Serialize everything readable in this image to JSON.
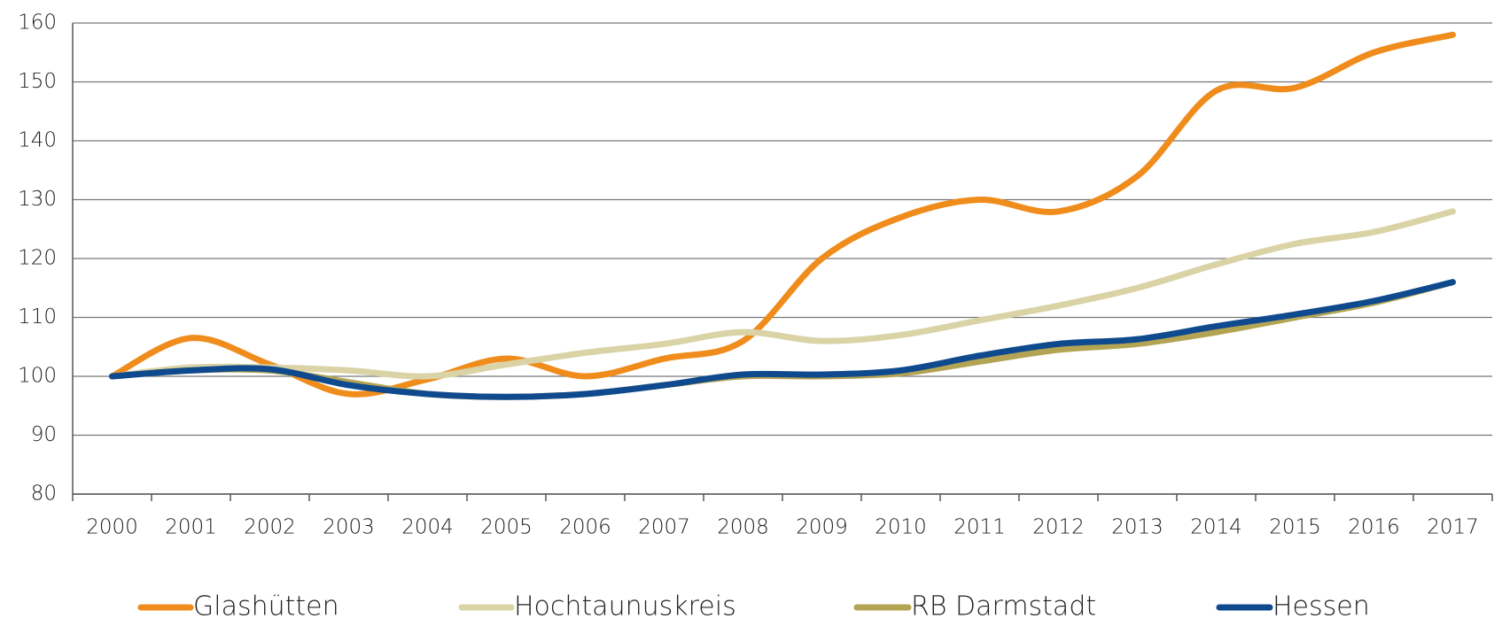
{
  "chart_data": {
    "type": "line",
    "categories": [
      "2000",
      "2001",
      "2002",
      "2003",
      "2004",
      "2005",
      "2006",
      "2007",
      "2008",
      "2009",
      "2010",
      "2011",
      "2012",
      "2013",
      "2014",
      "2015",
      "2016",
      "2017"
    ],
    "series": [
      {
        "name": "Glashütten",
        "color": "#ef8c1c",
        "values": [
          100,
          106.5,
          102,
          97,
          99.5,
          103,
          100,
          103,
          106,
          120,
          127,
          130,
          128,
          134,
          148.5,
          149,
          155,
          158
        ]
      },
      {
        "name": "Hochtaunuskreis",
        "color": "#d9d3a6",
        "values": [
          100,
          101.5,
          101.5,
          101,
          100,
          102,
          104,
          105.5,
          107.5,
          106,
          107,
          109.5,
          112,
          115,
          119,
          122.5,
          124.5,
          128
        ]
      },
      {
        "name": "RB Darmstadt",
        "color": "#b3a453",
        "values": [
          100,
          101,
          101,
          99,
          97,
          96.5,
          97,
          98.5,
          100,
          100,
          100.5,
          102.5,
          104.5,
          105.5,
          107.5,
          110,
          112.5,
          116
        ]
      },
      {
        "name": "Hessen",
        "color": "#0f4a8e",
        "values": [
          100,
          101,
          101.2,
          98.5,
          97,
          96.5,
          97,
          98.5,
          100.3,
          100.3,
          101,
          103.5,
          105.5,
          106.3,
          108.5,
          110.5,
          112.8,
          116
        ]
      }
    ],
    "ylim": [
      80,
      160
    ],
    "yticks": [
      80,
      90,
      100,
      110,
      120,
      130,
      140,
      150,
      160
    ],
    "grid": true,
    "legend": "bottom"
  }
}
